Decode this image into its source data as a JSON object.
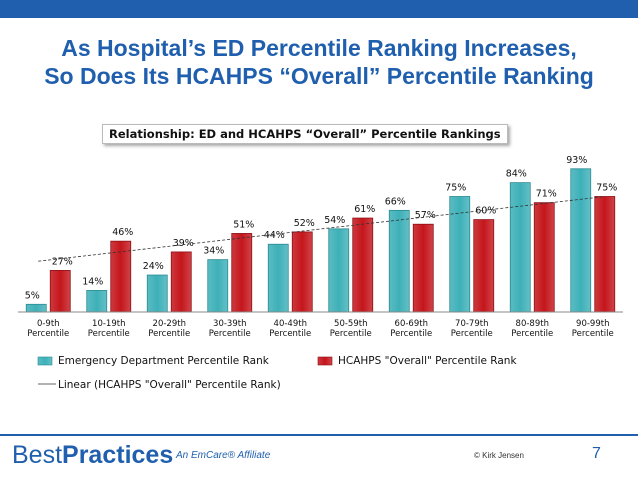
{
  "slide": {
    "title_line1": "As  Hospital’s ED Percentile Ranking Increases,",
    "title_line2": "So Does Its HCAHPS “Overall” Percentile Ranking",
    "page_number": "7"
  },
  "footer": {
    "brand_part1": "Best",
    "brand_part2": "Practices",
    "affiliate": "An EmCare® Affiliate",
    "copyright": "© Kirk Jensen"
  },
  "colors": {
    "brand_blue": "#1f5fae",
    "ed_series": "#3eb0b8",
    "hcahps_series": "#c4161c"
  },
  "chart_data": {
    "type": "bar",
    "title": "Relationship:  ED and HCAHPS “Overall” Percentile Rankings",
    "categories": [
      [
        "0-9th",
        "Percentile"
      ],
      [
        "10-19th",
        "Percentile"
      ],
      [
        "20-29th",
        "Percentile"
      ],
      [
        "30-39th",
        "Percentile"
      ],
      [
        "40-49th",
        "Percentile"
      ],
      [
        "50-59th",
        "Percentile"
      ],
      [
        "60-69th",
        "Percentile"
      ],
      [
        "70-79th",
        "Percentile"
      ],
      [
        "80-89th",
        "Percentile"
      ],
      [
        "90-99th",
        "Percentile"
      ]
    ],
    "series": [
      {
        "name": "Emergency Department Percentile Rank",
        "values": [
          5,
          14,
          24,
          34,
          44,
          54,
          66,
          75,
          84,
          93
        ]
      },
      {
        "name": "HCAHPS \"Overall\" Percentile Rank",
        "values": [
          27,
          46,
          39,
          51,
          52,
          61,
          57,
          60,
          71,
          75
        ]
      }
    ],
    "trendline": {
      "name": "Linear (HCAHPS \"Overall\" Percentile Rank)",
      "style": "dashed"
    },
    "data_labels": true,
    "ylim": [
      0,
      100
    ],
    "grid": false,
    "legend_position": "bottom"
  }
}
